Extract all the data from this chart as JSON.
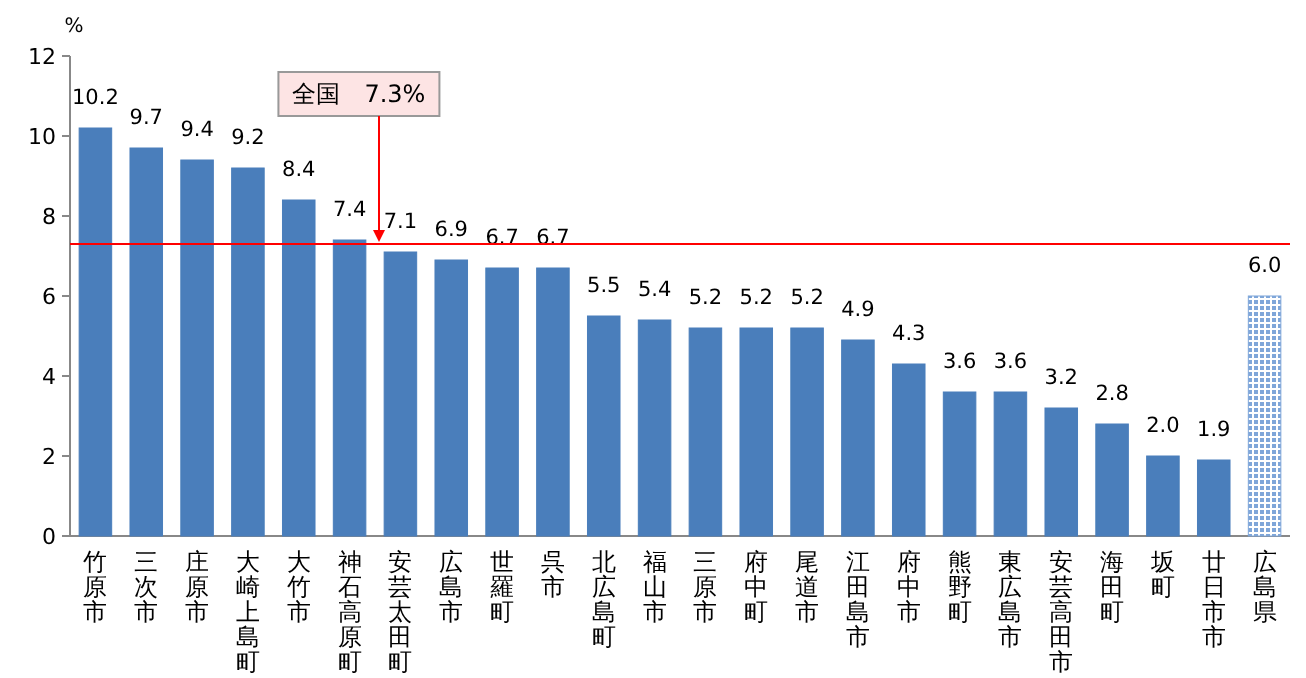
{
  "chart_data": {
    "type": "bar",
    "ylabel": "%",
    "categories": [
      "竹原市",
      "三次市",
      "庄原市",
      "大崎上島町",
      "大竹市",
      "神石高原町",
      "安芸太田町",
      "広島市",
      "世羅町",
      "呉市",
      "北広島町",
      "福山市",
      "三原市",
      "府中町",
      "尾道市",
      "江田島市",
      "府中市",
      "熊野町",
      "東広島市",
      "安芸高田市",
      "海田町",
      "坂町",
      "廿日市市",
      "広島県"
    ],
    "values": [
      10.2,
      9.7,
      9.4,
      9.2,
      8.4,
      7.4,
      7.1,
      6.9,
      6.7,
      6.7,
      5.5,
      5.4,
      5.2,
      5.2,
      5.2,
      4.9,
      4.3,
      3.6,
      3.6,
      3.2,
      2.8,
      2.0,
      1.9,
      6.0
    ],
    "value_labels": [
      "10.2",
      "9.7",
      "9.4",
      "9.2",
      "8.4",
      "7.4",
      "7.1",
      "6.9",
      "6.7",
      "6.7",
      "5.5",
      "5.4",
      "5.2",
      "5.2",
      "5.2",
      "4.9",
      "4.3",
      "3.6",
      "3.6",
      "3.2",
      "2.8",
      "2.0",
      "1.9",
      "6.0"
    ],
    "colors": [
      "#4a7ebb",
      "#4a7ebb",
      "#4a7ebb",
      "#4a7ebb",
      "#4a7ebb",
      "#4a7ebb",
      "#4a7ebb",
      "#4a7ebb",
      "#4a7ebb",
      "#4a7ebb",
      "#4a7ebb",
      "#4a7ebb",
      "#4a7ebb",
      "#4a7ebb",
      "#4a7ebb",
      "#4a7ebb",
      "#4a7ebb",
      "#4a7ebb",
      "#4a7ebb",
      "#4a7ebb",
      "#4a7ebb",
      "#4a7ebb",
      "#4a7ebb",
      "#7fa6d9"
    ],
    "ylim": [
      0,
      12
    ],
    "yticks": [
      0,
      2,
      4,
      6,
      8,
      10,
      12
    ],
    "ref_lines": [
      {
        "axis": "y",
        "value": 7.3,
        "label": "全国　7.3%",
        "color": "#ff0000"
      }
    ],
    "grid": false
  }
}
